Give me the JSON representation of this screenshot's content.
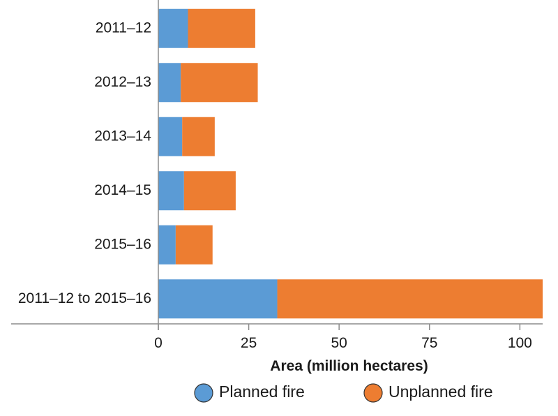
{
  "chart_data": {
    "type": "bar",
    "orientation": "horizontal",
    "stacked": true,
    "categories": [
      "2011–12",
      "2012–13",
      "2013–14",
      "2014–15",
      "2015–16",
      "2011–12 to 2015–16"
    ],
    "series": [
      {
        "name": "Planned fire",
        "color": "#5b9bd5",
        "values": [
          8.2,
          6.2,
          6.6,
          7.1,
          4.8,
          32.9
        ]
      },
      {
        "name": "Unplanned fire",
        "color": "#ed7d31",
        "values": [
          18.6,
          21.3,
          9.0,
          14.3,
          10.2,
          73.4
        ]
      }
    ],
    "xlabel": "Area (million hectares)",
    "ylabel": "",
    "title": "",
    "xlim": [
      0,
      106.3
    ],
    "xticks": [
      0,
      25,
      50,
      75,
      100
    ],
    "xtick_labels": [
      "0",
      "25",
      "50",
      "75",
      "100"
    ],
    "grid": false,
    "legend_position": "bottom"
  }
}
